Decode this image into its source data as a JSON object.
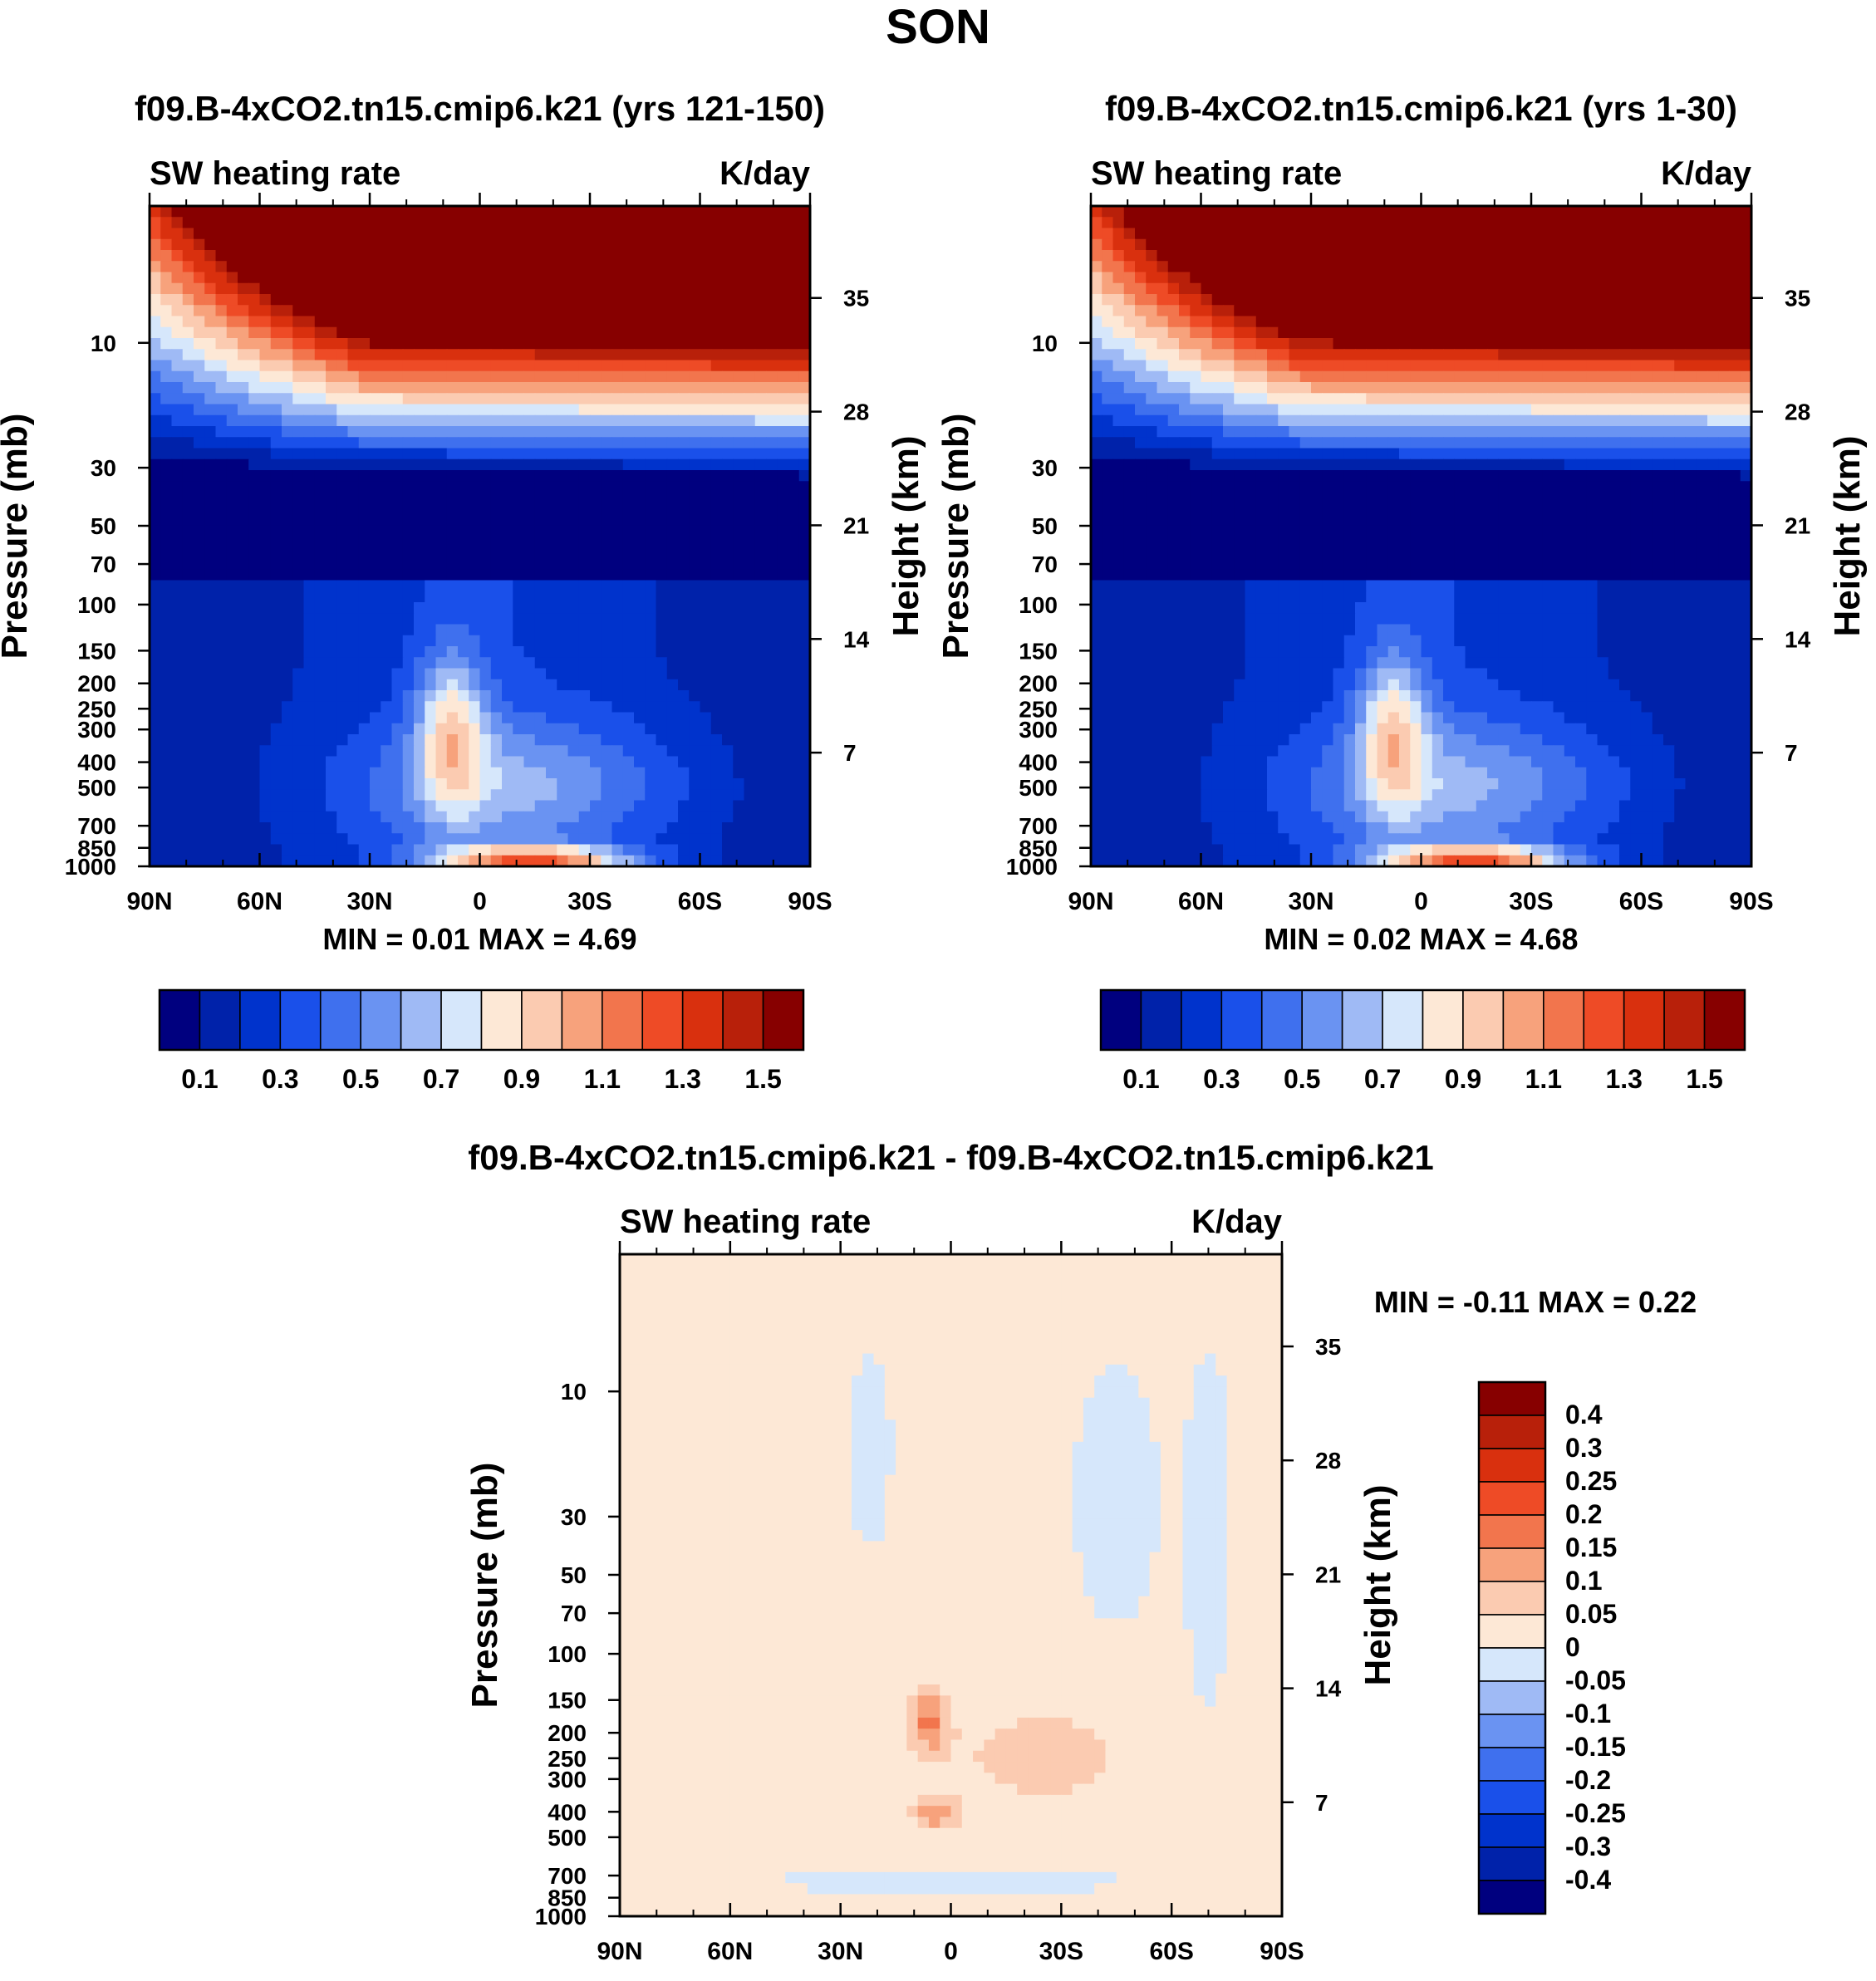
{
  "page": {
    "title": "SON"
  },
  "colors": {
    "scale": [
      "#00007f",
      "#0022aa",
      "#0033cc",
      "#1a50ea",
      "#3f70ee",
      "#6a93f2",
      "#9fbaf5",
      "#d6e7fb",
      "#fde8d6",
      "#fbcbb1",
      "#f7a27c",
      "#f2754d",
      "#ee4b26",
      "#d9300e",
      "#b8200a",
      "#870000"
    ]
  },
  "chart_data": [
    {
      "type": "heatmap",
      "title": "f09.B-4xCO2.tn15.cmip6.k21 (yrs 121-150)",
      "left_string": "SW heating rate",
      "right_string": "K/day",
      "xlabel": "",
      "ylabel": "Pressure (mb)",
      "y2label": "Height (km)",
      "x_ticks": [
        "90N",
        "60N",
        "30N",
        "0",
        "30S",
        "60S",
        "90S"
      ],
      "xlim": [
        -90,
        90
      ],
      "ylim": [
        1000,
        3
      ],
      "y_ticks": [
        10,
        30,
        50,
        70,
        100,
        150,
        200,
        250,
        300,
        400,
        500,
        700,
        850,
        1000
      ],
      "y2_ticks": [
        35,
        28,
        21,
        14,
        7
      ],
      "stats": "MIN =   0.01  MAX =   4.69",
      "colorbar": {
        "orientation": "horizontal",
        "levels": [
          0.1,
          0.2,
          0.3,
          0.4,
          0.5,
          0.6,
          0.7,
          0.8,
          0.9,
          1.0,
          1.1,
          1.2,
          1.3,
          1.4,
          1.5
        ],
        "labels": [
          "0.1",
          "0.3",
          "0.5",
          "0.7",
          "0.9",
          "1.1",
          "1.3",
          "1.5"
        ]
      }
    },
    {
      "type": "heatmap",
      "title": "f09.B-4xCO2.tn15.cmip6.k21 (yrs 1-30)",
      "left_string": "SW heating rate",
      "right_string": "K/day",
      "xlabel": "",
      "ylabel": "Pressure (mb)",
      "y2label": "Height (km)",
      "x_ticks": [
        "90N",
        "60N",
        "30N",
        "0",
        "30S",
        "60S",
        "90S"
      ],
      "xlim": [
        -90,
        90
      ],
      "ylim": [
        1000,
        3
      ],
      "y_ticks": [
        10,
        30,
        50,
        70,
        100,
        150,
        200,
        250,
        300,
        400,
        500,
        700,
        850,
        1000
      ],
      "y2_ticks": [
        35,
        28,
        21,
        14,
        7
      ],
      "stats": "MIN =   0.02  MAX =   4.68",
      "colorbar": {
        "orientation": "horizontal",
        "levels": [
          0.1,
          0.2,
          0.3,
          0.4,
          0.5,
          0.6,
          0.7,
          0.8,
          0.9,
          1.0,
          1.1,
          1.2,
          1.3,
          1.4,
          1.5
        ],
        "labels": [
          "0.1",
          "0.3",
          "0.5",
          "0.7",
          "0.9",
          "1.1",
          "1.3",
          "1.5"
        ]
      }
    },
    {
      "type": "heatmap",
      "title": "f09.B-4xCO2.tn15.cmip6.k21 - f09.B-4xCO2.tn15.cmip6.k21",
      "left_string": "SW heating rate",
      "right_string": "K/day",
      "xlabel": "",
      "ylabel": "Pressure (mb)",
      "y2label": "Height (km)",
      "x_ticks": [
        "90N",
        "60N",
        "30N",
        "0",
        "30S",
        "60S",
        "90S"
      ],
      "xlim": [
        -90,
        90
      ],
      "ylim": [
        1000,
        3
      ],
      "y_ticks": [
        10,
        30,
        50,
        70,
        100,
        150,
        200,
        250,
        300,
        400,
        500,
        700,
        850,
        1000
      ],
      "y2_ticks": [
        35,
        28,
        21,
        14,
        7
      ],
      "stats": "MIN =  -0.11  MAX =   0.22",
      "colorbar": {
        "orientation": "vertical",
        "levels": [
          -0.4,
          -0.3,
          -0.25,
          -0.2,
          -0.15,
          -0.1,
          -0.05,
          0,
          0.05,
          0.1,
          0.15,
          0.2,
          0.25,
          0.3,
          0.4
        ],
        "labels": [
          "0.4",
          "0.3",
          "0.25",
          "0.2",
          "0.15",
          "0.1",
          "0.05",
          "0",
          "-0.05",
          "-0.1",
          "-0.15",
          "-0.2",
          "-0.25",
          "-0.3",
          "-0.4"
        ]
      }
    }
  ]
}
